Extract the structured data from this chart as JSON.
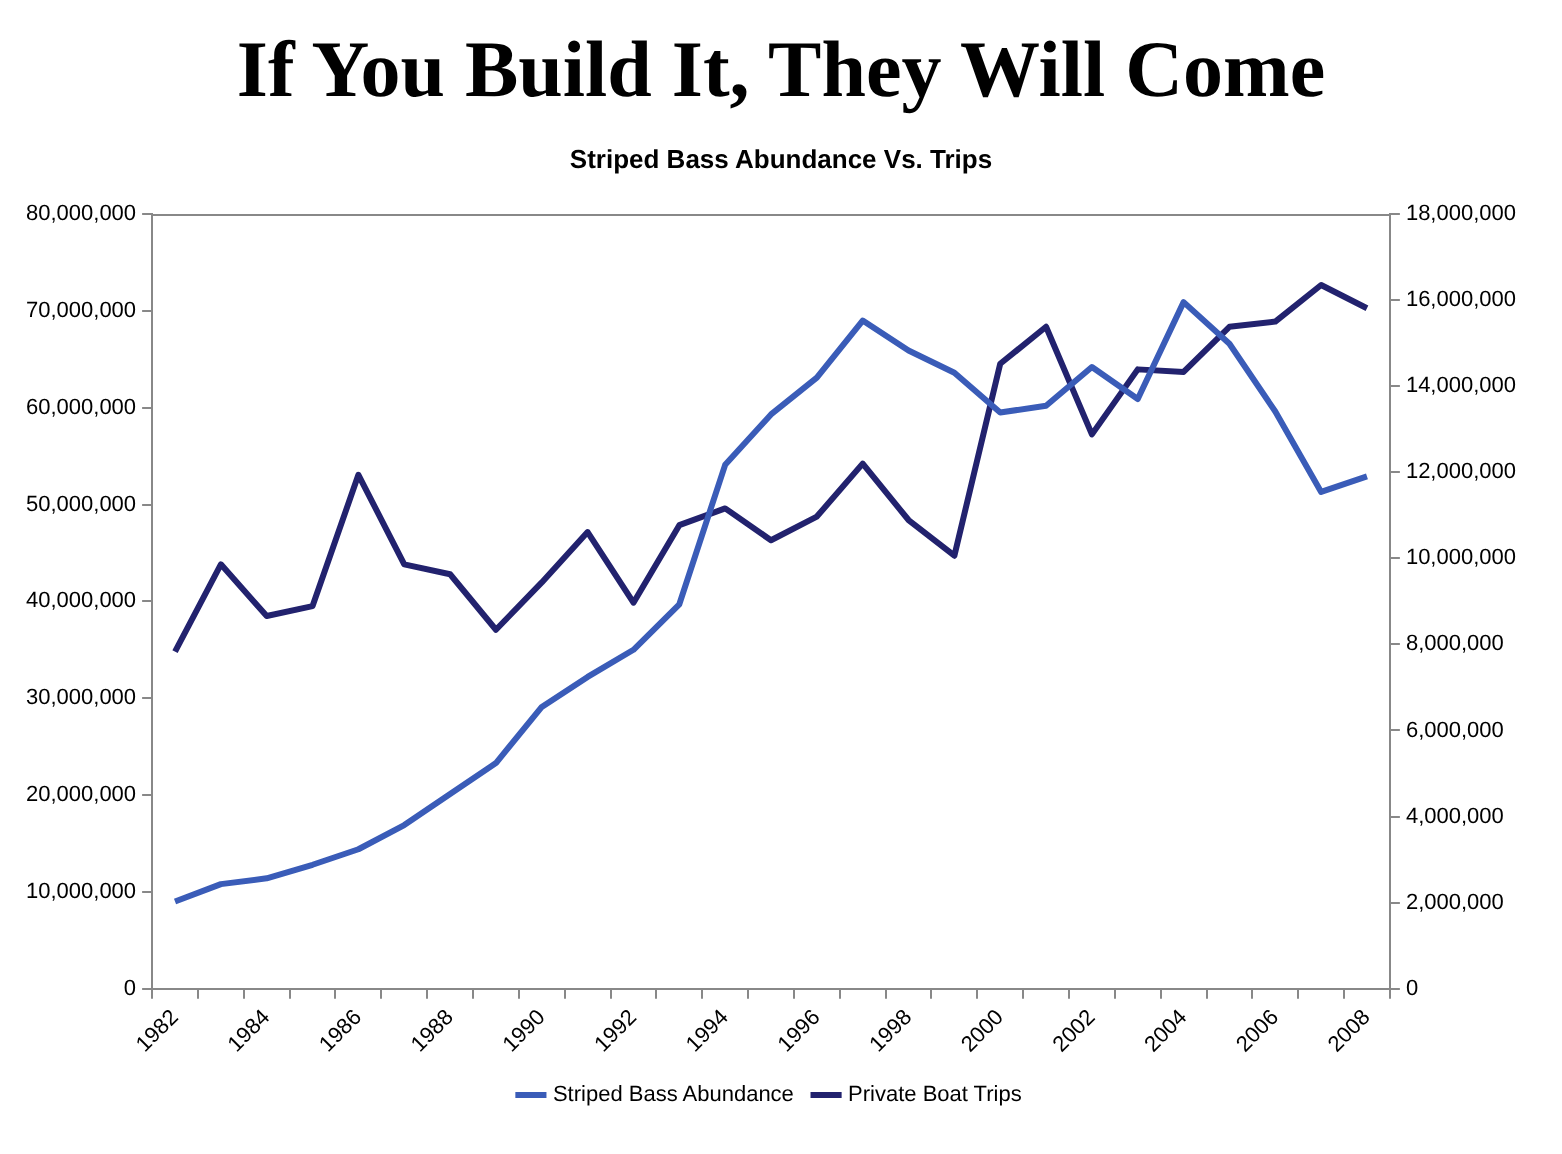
{
  "chart_data": {
    "type": "line",
    "title": "If You Build It, They Will Come",
    "subtitle": "Striped Bass Abundance Vs. Trips",
    "categories": [
      "1982",
      null,
      "1984",
      null,
      "1986",
      null,
      "1988",
      null,
      "1990",
      null,
      "1992",
      null,
      "1994",
      null,
      "1996",
      null,
      "1998",
      null,
      "2000",
      null,
      "2002",
      null,
      "2004",
      null,
      "2006",
      null,
      "2008"
    ],
    "series": [
      {
        "name": "Striped Bass Abundance",
        "color": "#3a5cb8",
        "values": [
          9000000,
          10800000,
          11400000,
          12800000,
          14400000,
          16900000,
          20100000,
          23300000,
          29100000,
          32200000,
          35000000,
          39700000,
          54100000,
          59300000,
          63100000,
          69000000,
          65900000,
          63600000,
          59500000,
          60200000,
          64200000,
          60900000,
          70900000,
          66600000,
          59600000,
          51300000,
          52900000
        ]
      },
      {
        "name": "Private Boat Trips",
        "color": "#22226e",
        "axis": "y2",
        "values": [
          7830000,
          9860000,
          8660000,
          8890000,
          11940000,
          9860000,
          9630000,
          8340000,
          9440000,
          10610000,
          8970000,
          10770000,
          11160000,
          10420000,
          10970000,
          12200000,
          10890000,
          10060000,
          14520000,
          15380000,
          12880000,
          14390000,
          14330000,
          15380000,
          15500000,
          16350000,
          15810000
        ]
      }
    ],
    "ylim": [
      0,
      80000000
    ],
    "yticks": [
      {
        "value": 0,
        "label": "0"
      },
      {
        "value": 10000000,
        "label": "10,000,000"
      },
      {
        "value": 20000000,
        "label": "20,000,000"
      },
      {
        "value": 30000000,
        "label": "30,000,000"
      },
      {
        "value": 40000000,
        "label": "40,000,000"
      },
      {
        "value": 50000000,
        "label": "50,000,000"
      },
      {
        "value": 60000000,
        "label": "60,000,000"
      },
      {
        "value": 70000000,
        "label": "70,000,000"
      },
      {
        "value": 80000000,
        "label": "80,000,000"
      }
    ],
    "y2lim": [
      0,
      18000000
    ],
    "y2ticks": [
      {
        "value": 0,
        "label": "0"
      },
      {
        "value": 2000000,
        "label": "2,000,000"
      },
      {
        "value": 4000000,
        "label": "4,000,000"
      },
      {
        "value": 6000000,
        "label": "6,000,000"
      },
      {
        "value": 8000000,
        "label": "8,000,000"
      },
      {
        "value": 10000000,
        "label": "10,000,000"
      },
      {
        "value": 12000000,
        "label": "12,000,000"
      },
      {
        "value": 14000000,
        "label": "14,000,000"
      },
      {
        "value": 16000000,
        "label": "16,000,000"
      },
      {
        "value": 18000000,
        "label": "18,000,000"
      }
    ],
    "grid": false,
    "legend": "bottom",
    "marker": "none",
    "line_style": "solid"
  }
}
